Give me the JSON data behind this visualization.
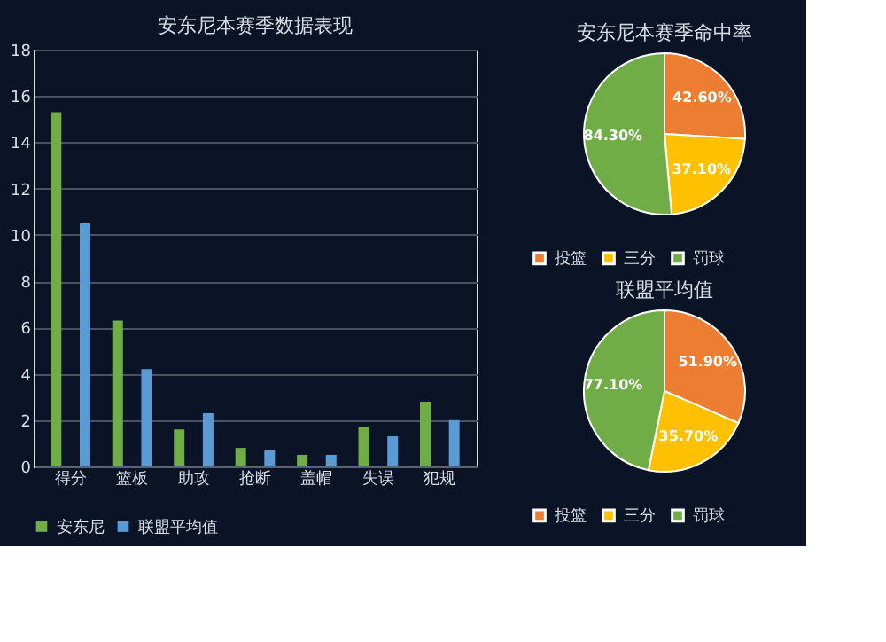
{
  "chart_data": [
    {
      "type": "bar",
      "title": "安东尼本赛季数据表现",
      "categories": [
        "得分",
        "篮板",
        "助攻",
        "抢断",
        "盖帽",
        "失误",
        "犯规"
      ],
      "series": [
        {
          "name": "安东尼",
          "color": "#70ad47",
          "values": [
            15.3,
            6.3,
            1.6,
            0.8,
            0.5,
            1.7,
            2.8
          ]
        },
        {
          "name": "联盟平均值",
          "color": "#5b9bd5",
          "values": [
            10.5,
            4.2,
            2.3,
            0.7,
            0.5,
            1.3,
            2.0
          ]
        }
      ],
      "ylim": [
        0,
        18
      ],
      "yticks": [
        0,
        2,
        4,
        6,
        8,
        10,
        12,
        14,
        16,
        18
      ],
      "grid": "y",
      "legend": "bottom"
    },
    {
      "type": "pie",
      "title": "安东尼本赛季命中率",
      "categories": [
        "投篮",
        "三分",
        "罚球"
      ],
      "values": [
        42.6,
        37.1,
        84.3
      ],
      "colors": [
        "#ed7d31",
        "#ffc000",
        "#70ad47"
      ],
      "value_labels": [
        "42.60%",
        "37.10%",
        "84.30%"
      ],
      "legend": "bottom"
    },
    {
      "type": "pie",
      "title": "联盟平均值",
      "categories": [
        "投篮",
        "三分",
        "罚球"
      ],
      "values": [
        51.9,
        35.7,
        77.1
      ],
      "colors": [
        "#ed7d31",
        "#ffc000",
        "#70ad47"
      ],
      "value_labels": [
        "51.90%",
        "35.70%",
        "77.10%"
      ],
      "legend": "bottom"
    }
  ]
}
